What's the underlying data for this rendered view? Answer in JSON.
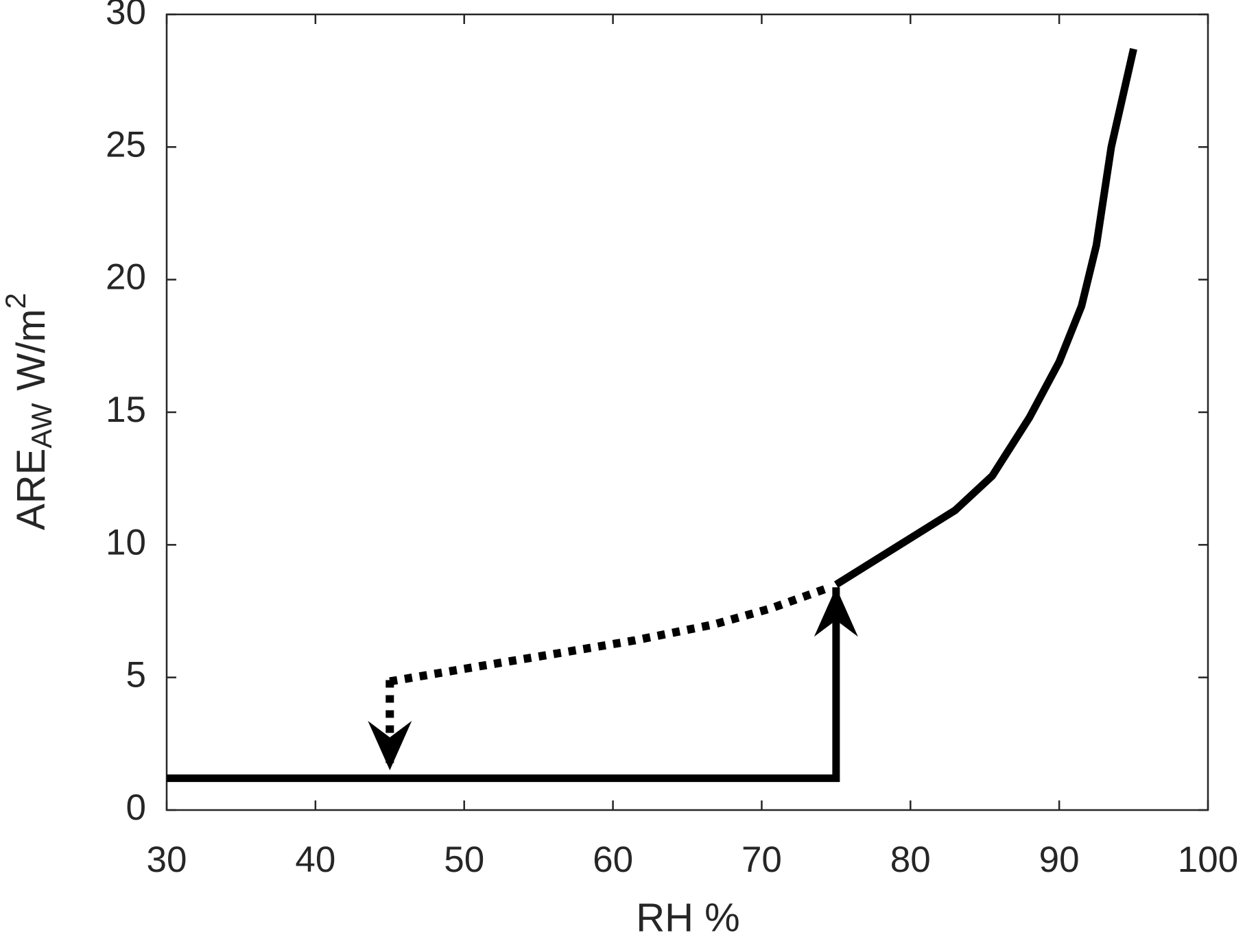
{
  "chart_data": {
    "type": "line",
    "xlabel": "RH %",
    "ylabel_main": "ARE",
    "ylabel_sub": "AW",
    "ylabel_unit": "W/m",
    "ylabel_sup": "2",
    "xlim": [
      30,
      100
    ],
    "xticks": [
      30,
      40,
      50,
      60,
      70,
      80,
      90,
      100
    ],
    "ylim": [
      0,
      30
    ],
    "yticks": [
      0,
      5,
      10,
      15,
      20,
      25,
      30
    ],
    "grid": false,
    "series": [
      {
        "color": "#000000",
        "style": "solid",
        "arrow": true,
        "x": [
          30,
          75,
          75
        ],
        "values": [
          1.2,
          1.2,
          8.4
        ]
      },
      {
        "color": "#000000",
        "style": "solid",
        "arrow": false,
        "x": [
          75,
          79,
          83,
          85.5,
          88,
          90,
          91.5,
          92.5,
          93.5,
          95
        ],
        "values": [
          8.5,
          9.9,
          11.3,
          12.6,
          14.8,
          16.9,
          19.0,
          21.3,
          25.0,
          28.7
        ]
      },
      {
        "color": "#000000",
        "style": "dotted",
        "arrow": false,
        "x": [
          45,
          50.8,
          56.2,
          61.5,
          66.8,
          70.6,
          74.6
        ],
        "values": [
          4.85,
          5.4,
          5.9,
          6.4,
          7.0,
          7.6,
          8.4
        ]
      },
      {
        "color": "#000000",
        "style": "dotted",
        "arrow": true,
        "x": [
          45,
          45
        ],
        "values": [
          4.9,
          1.5
        ]
      }
    ]
  }
}
